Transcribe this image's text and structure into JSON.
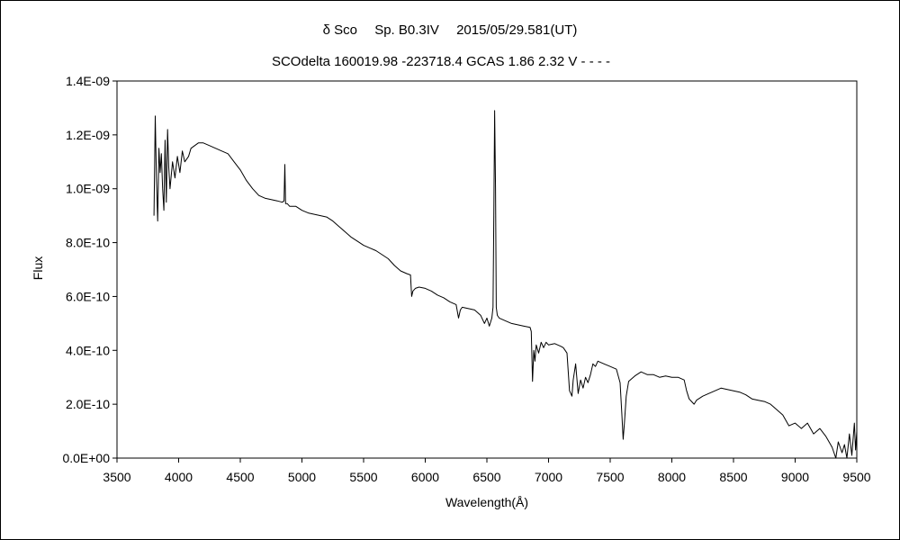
{
  "chart_data": {
    "type": "line",
    "title": "δ Sco　 Sp. B0.3IV　 2015/05/29.581(UT)",
    "subtitle": "SCOdelta 160019.98 -223718.4 GCAS 1.86 2.32 V - - - -",
    "xlabel": "Wavelength(Å)",
    "ylabel": "Flux",
    "xlim": [
      3500,
      9500
    ],
    "ylim": [
      0,
      1.4e-09
    ],
    "x_ticks": [
      3500,
      4000,
      4500,
      5000,
      5500,
      6000,
      6500,
      7000,
      7500,
      8000,
      8500,
      9000,
      9500
    ],
    "x_tick_labels": [
      "3500",
      "4000",
      "4500",
      "5000",
      "5500",
      "6000",
      "6500",
      "7000",
      "7500",
      "8000",
      "8500",
      "9000",
      "9500"
    ],
    "y_ticks": [
      0,
      2e-10,
      4e-10,
      6e-10,
      8e-10,
      1e-09,
      1.2e-09,
      1.4e-09
    ],
    "y_tick_labels": [
      "0.0E+00",
      "2.0E-10",
      "4.0E-10",
      "6.0E-10",
      "8.0E-10",
      "1.0E-09",
      "1.2E-09",
      "1.4E-09"
    ],
    "grid": false,
    "legend": "none",
    "series": [
      {
        "color": "#000000",
        "x": [
          3800,
          3810,
          3820,
          3830,
          3840,
          3850,
          3860,
          3870,
          3880,
          3890,
          3900,
          3910,
          3920,
          3930,
          3950,
          3970,
          3990,
          4010,
          4030,
          4050,
          4080,
          4100,
          4130,
          4160,
          4200,
          4250,
          4300,
          4350,
          4400,
          4450,
          4500,
          4550,
          4600,
          4650,
          4700,
          4750,
          4800,
          4840,
          4855,
          4861,
          4867,
          4880,
          4900,
          4950,
          5000,
          5050,
          5100,
          5150,
          5200,
          5250,
          5300,
          5350,
          5400,
          5450,
          5500,
          5550,
          5600,
          5650,
          5700,
          5750,
          5800,
          5850,
          5880,
          5890,
          5900,
          5920,
          5950,
          6000,
          6050,
          6100,
          6150,
          6200,
          6250,
          6270,
          6285,
          6300,
          6350,
          6400,
          6450,
          6480,
          6500,
          6520,
          6540,
          6550,
          6556,
          6563,
          6570,
          6576,
          6585,
          6600,
          6650,
          6700,
          6750,
          6800,
          6850,
          6860,
          6870,
          6880,
          6890,
          6900,
          6920,
          6940,
          6960,
          6980,
          7000,
          7050,
          7100,
          7120,
          7150,
          7170,
          7180,
          7190,
          7200,
          7220,
          7240,
          7260,
          7280,
          7300,
          7320,
          7340,
          7360,
          7380,
          7400,
          7450,
          7500,
          7550,
          7580,
          7595,
          7605,
          7615,
          7630,
          7650,
          7700,
          7750,
          7800,
          7850,
          7900,
          7950,
          8000,
          8050,
          8100,
          8120,
          8140,
          8160,
          8180,
          8200,
          8250,
          8300,
          8350,
          8400,
          8450,
          8500,
          8550,
          8600,
          8650,
          8700,
          8750,
          8800,
          8850,
          8900,
          8950,
          9000,
          9050,
          9100,
          9150,
          9200,
          9250,
          9300,
          9330,
          9350,
          9380,
          9400,
          9420,
          9440,
          9460,
          9480,
          9490,
          9500
        ],
        "y": [
          9e-10,
          1.27e-09,
          1.04e-09,
          8.8e-10,
          1.15e-09,
          1.06e-09,
          1.13e-09,
          1e-09,
          9.2e-10,
          1.18e-09,
          9.5e-10,
          1.22e-09,
          1.08e-09,
          1e-09,
          1.1e-09,
          1.04e-09,
          1.12e-09,
          1.06e-09,
          1.14e-09,
          1.1e-09,
          1.12e-09,
          1.15e-09,
          1.16e-09,
          1.17e-09,
          1.17e-09,
          1.16e-09,
          1.15e-09,
          1.14e-09,
          1.13e-09,
          1.1e-09,
          1.07e-09,
          1.03e-09,
          1e-09,
          9.75e-10,
          9.65e-10,
          9.6e-10,
          9.55e-10,
          9.5e-10,
          9.55e-10,
          1.09e-09,
          9.45e-10,
          9.45e-10,
          9.35e-10,
          9.35e-10,
          9.2e-10,
          9.1e-10,
          9.05e-10,
          9e-10,
          8.95e-10,
          8.8e-10,
          8.6e-10,
          8.4e-10,
          8.2e-10,
          8.05e-10,
          7.9e-10,
          7.8e-10,
          7.7e-10,
          7.55e-10,
          7.4e-10,
          7.15e-10,
          6.95e-10,
          6.85e-10,
          6.8e-10,
          6e-10,
          6.2e-10,
          6.3e-10,
          6.35e-10,
          6.3e-10,
          6.2e-10,
          6.05e-10,
          5.95e-10,
          5.8e-10,
          5.7e-10,
          5.2e-10,
          5.5e-10,
          5.6e-10,
          5.55e-10,
          5.5e-10,
          5.3e-10,
          5e-10,
          5.2e-10,
          4.9e-10,
          5.2e-10,
          5.6e-10,
          9e-10,
          1.29e-09,
          1e-09,
          5.6e-10,
          5.3e-10,
          5.2e-10,
          5.1e-10,
          5e-10,
          4.95e-10,
          4.9e-10,
          4.85e-10,
          4.7e-10,
          2.85e-10,
          4e-10,
          3.6e-10,
          4.2e-10,
          3.9e-10,
          4.3e-10,
          4.1e-10,
          4.3e-10,
          4.2e-10,
          4.25e-10,
          4.15e-10,
          4.1e-10,
          3.9e-10,
          2.5e-10,
          2.4e-10,
          2.3e-10,
          2.9e-10,
          3.5e-10,
          2.4e-10,
          2.9e-10,
          2.6e-10,
          3e-10,
          2.8e-10,
          3.1e-10,
          3.5e-10,
          3.4e-10,
          3.6e-10,
          3.5e-10,
          3.4e-10,
          3.3e-10,
          2.8e-10,
          1.6e-10,
          7e-11,
          1.3e-10,
          2.3e-10,
          2.85e-10,
          3.05e-10,
          3.2e-10,
          3.1e-10,
          3.1e-10,
          3e-10,
          3.05e-10,
          3e-10,
          3e-10,
          2.9e-10,
          2.5e-10,
          2.2e-10,
          2.1e-10,
          2e-10,
          2.15e-10,
          2.3e-10,
          2.4e-10,
          2.5e-10,
          2.6e-10,
          2.55e-10,
          2.5e-10,
          2.45e-10,
          2.35e-10,
          2.2e-10,
          2.15e-10,
          2.1e-10,
          2e-10,
          1.8e-10,
          1.6e-10,
          1.2e-10,
          1.3e-10,
          1.1e-10,
          1.3e-10,
          9e-11,
          1.1e-10,
          8e-11,
          4e-11,
          0.0,
          6e-11,
          2e-11,
          5e-11,
          0.0,
          9e-11,
          1e-11,
          1.3e-10,
          3e-11,
          1e-10
        ]
      }
    ]
  }
}
